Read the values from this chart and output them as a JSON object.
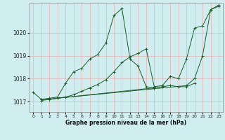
{
  "bg_color": "#d0eef0",
  "grid_color": "#e8b0b0",
  "line_color": "#1a5c28",
  "xlabel": "Graphe pression niveau de la mer (hPa)",
  "xlim": [
    -0.5,
    23.5
  ],
  "ylim": [
    1016.55,
    1021.3
  ],
  "yticks": [
    1017,
    1018,
    1019,
    1020
  ],
  "xticks": [
    0,
    1,
    2,
    3,
    4,
    5,
    6,
    7,
    8,
    9,
    10,
    11,
    12,
    13,
    14,
    15,
    16,
    17,
    18,
    19,
    20,
    21,
    22,
    23
  ],
  "lines": [
    {
      "x": [
        0,
        1,
        2,
        3,
        4,
        5,
        6,
        7,
        8,
        9,
        10,
        11,
        12,
        13,
        14,
        15
      ],
      "y": [
        1017.4,
        1017.1,
        1017.15,
        1017.2,
        1017.8,
        1018.3,
        1018.45,
        1018.85,
        1019.05,
        1019.55,
        1020.75,
        1021.05,
        1018.85,
        1018.55,
        1017.65,
        1017.6
      ]
    },
    {
      "x": [
        2,
        3,
        4,
        5,
        6,
        7,
        8,
        9,
        10,
        11,
        12,
        13,
        14,
        15,
        16,
        17,
        18,
        19,
        20,
        21,
        22,
        23
      ],
      "y": [
        1017.1,
        1017.15,
        1017.2,
        1017.3,
        1017.45,
        1017.6,
        1017.75,
        1017.95,
        1018.3,
        1018.7,
        1018.95,
        1019.1,
        1019.3,
        1017.65,
        1017.7,
        1018.1,
        1018.0,
        1018.85,
        1020.2,
        1020.3,
        1021.0,
        1021.15
      ]
    },
    {
      "x": [
        1,
        2,
        3,
        19,
        20,
        21,
        22,
        23
      ],
      "y": [
        1017.1,
        1017.1,
        1017.15,
        1017.7,
        1018.0,
        1019.0,
        1021.0,
        1021.2
      ]
    },
    {
      "x": [
        1,
        2,
        3,
        15,
        16,
        17,
        18,
        19,
        20
      ],
      "y": [
        1017.05,
        1017.1,
        1017.15,
        1017.6,
        1017.65,
        1017.7,
        1017.65,
        1017.65,
        1017.8
      ]
    }
  ]
}
